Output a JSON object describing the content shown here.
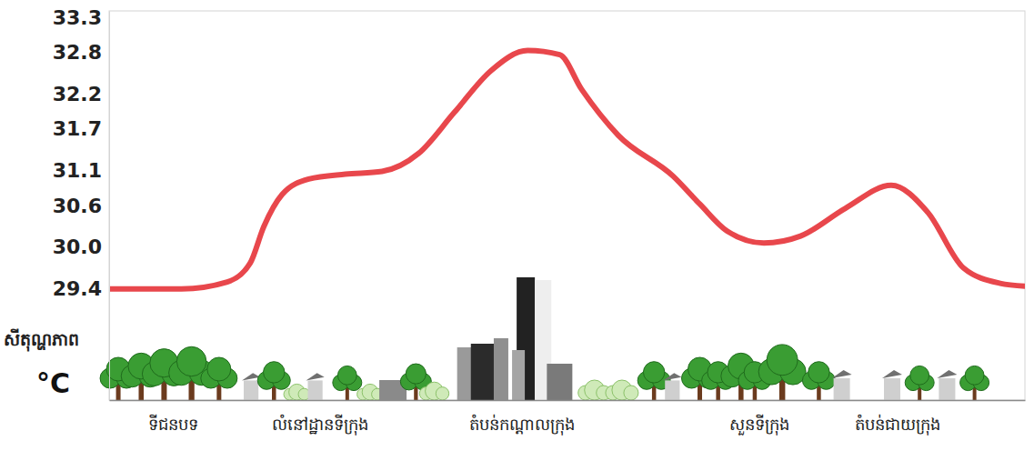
{
  "chart_data": {
    "type": "line",
    "y_label": [
      "សីតុណ្ហភាព",
      "°C"
    ],
    "color": "#e8474c",
    "grid": false,
    "xlim": [
      0,
      100
    ],
    "xticks": [
      {
        "value": 7,
        "label": "ទីជនបទ"
      },
      {
        "value": 23,
        "label": "លំនៅដ្ឋានទីក្រុង"
      },
      {
        "value": 45,
        "label": "តំបន់កណ្តាលក្រុង"
      },
      {
        "value": 71,
        "label": "សួនទីក្រុង"
      },
      {
        "value": 86,
        "label": "តំបន់ជាយក្រុង"
      }
    ],
    "ylim": [
      27.8,
      33.4
    ],
    "yticks": [
      33.3,
      32.8,
      32.2,
      31.7,
      31.1,
      30.6,
      {
        "value": 30,
        "label": "30.0"
      },
      29.4
    ],
    "x": [
      0,
      7.9,
      12.9,
      15.4,
      16.9,
      18.9,
      21.8,
      25.8,
      29.8,
      33.8,
      37.7,
      41.7,
      45.7,
      49.2,
      51.6,
      55.6,
      61.6,
      64.5,
      67.5,
      71.5,
      75.5,
      80.4,
      85.4,
      89.4,
      93.3,
      97.3,
      100
    ],
    "values": [
      29.4,
      29.4,
      29.5,
      29.77,
      30.3,
      30.76,
      30.98,
      31.05,
      31.09,
      31.35,
      31.94,
      32.54,
      32.83,
      32.77,
      32.27,
      31.61,
      31.02,
      30.62,
      30.23,
      30.06,
      30.16,
      30.56,
      30.89,
      30.5,
      29.7,
      29.48,
      29.44
    ]
  }
}
